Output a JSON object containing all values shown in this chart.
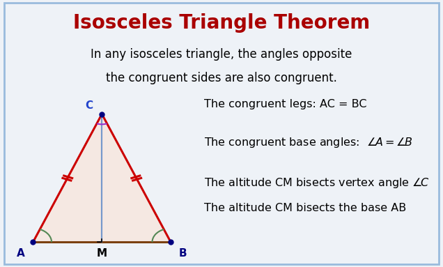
{
  "title": "Isosceles Triangle Theorem",
  "title_color": "#aa0000",
  "title_fontsize": 20,
  "subtitle_line1": "In any isosceles triangle, the angles opposite",
  "subtitle_line2": "the congruent sides are also congruent.",
  "subtitle_fontsize": 12,
  "bg_color": "#eef2f7",
  "triangle_fill": "#f5e8e2",
  "triangle_edge_color": "#cc0000",
  "base_color": "#7B4010",
  "altitude_color": "#7799cc",
  "vertex_dot_color": "#000080",
  "tick_color": "#cc0000",
  "angle_arc_color_base": "#558855",
  "angle_arc_color_top": "#9933cc",
  "A": [
    0.0,
    0.0
  ],
  "B": [
    2.0,
    0.0
  ],
  "C": [
    1.0,
    2.5
  ],
  "M": [
    1.0,
    0.0
  ],
  "label_A": "A",
  "label_B": "B",
  "label_C": "C",
  "label_M": "M",
  "text1": "The congruent legs: AC = BC",
  "text4": "The altitude CM bisects the base AB",
  "text_fontsize": 11.5,
  "border_color": "#99bbdd"
}
